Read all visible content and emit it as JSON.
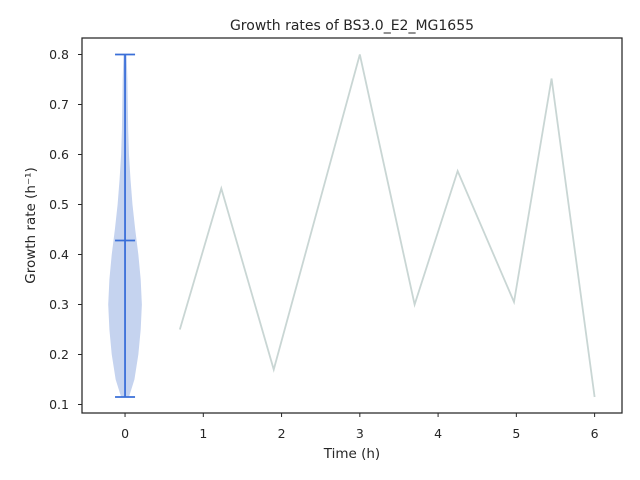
{
  "chart_data": {
    "type": "line",
    "title": "Growth rates of BS3.0_E2_MG1655",
    "xlabel": "Time (h)",
    "ylabel": "Growth rate (h⁻¹)",
    "xlim": [
      -0.55,
      6.35
    ],
    "ylim": [
      0.083,
      0.833
    ],
    "x_ticks": [
      0,
      1,
      2,
      3,
      4,
      5,
      6
    ],
    "y_ticks": [
      0.1,
      0.2,
      0.3,
      0.4,
      0.5,
      0.6,
      0.7,
      0.8
    ],
    "grid": false,
    "series": [
      {
        "type": "line",
        "color": "#c9d6d4",
        "x": [
          0.7,
          1.23,
          1.9,
          3.0,
          3.7,
          4.25,
          4.97,
          5.45,
          6.0
        ],
        "y": [
          0.25,
          0.532,
          0.17,
          0.8,
          0.3,
          0.567,
          0.305,
          0.752,
          0.115
        ]
      }
    ],
    "violin": {
      "x": 0,
      "min": 0.115,
      "median": 0.428,
      "max": 0.8,
      "fill_color": "#c5d3ef",
      "line_color": "#3a6fd8",
      "profile": [
        {
          "y": 0.115,
          "w": 0.05
        },
        {
          "y": 0.15,
          "w": 0.12
        },
        {
          "y": 0.2,
          "w": 0.17
        },
        {
          "y": 0.25,
          "w": 0.2
        },
        {
          "y": 0.3,
          "w": 0.215
        },
        {
          "y": 0.35,
          "w": 0.2
        },
        {
          "y": 0.4,
          "w": 0.17
        },
        {
          "y": 0.45,
          "w": 0.13
        },
        {
          "y": 0.5,
          "w": 0.095
        },
        {
          "y": 0.55,
          "w": 0.07
        },
        {
          "y": 0.6,
          "w": 0.05
        },
        {
          "y": 0.65,
          "w": 0.04
        },
        {
          "y": 0.7,
          "w": 0.035
        },
        {
          "y": 0.75,
          "w": 0.03
        },
        {
          "y": 0.8,
          "w": 0.02
        }
      ]
    }
  }
}
